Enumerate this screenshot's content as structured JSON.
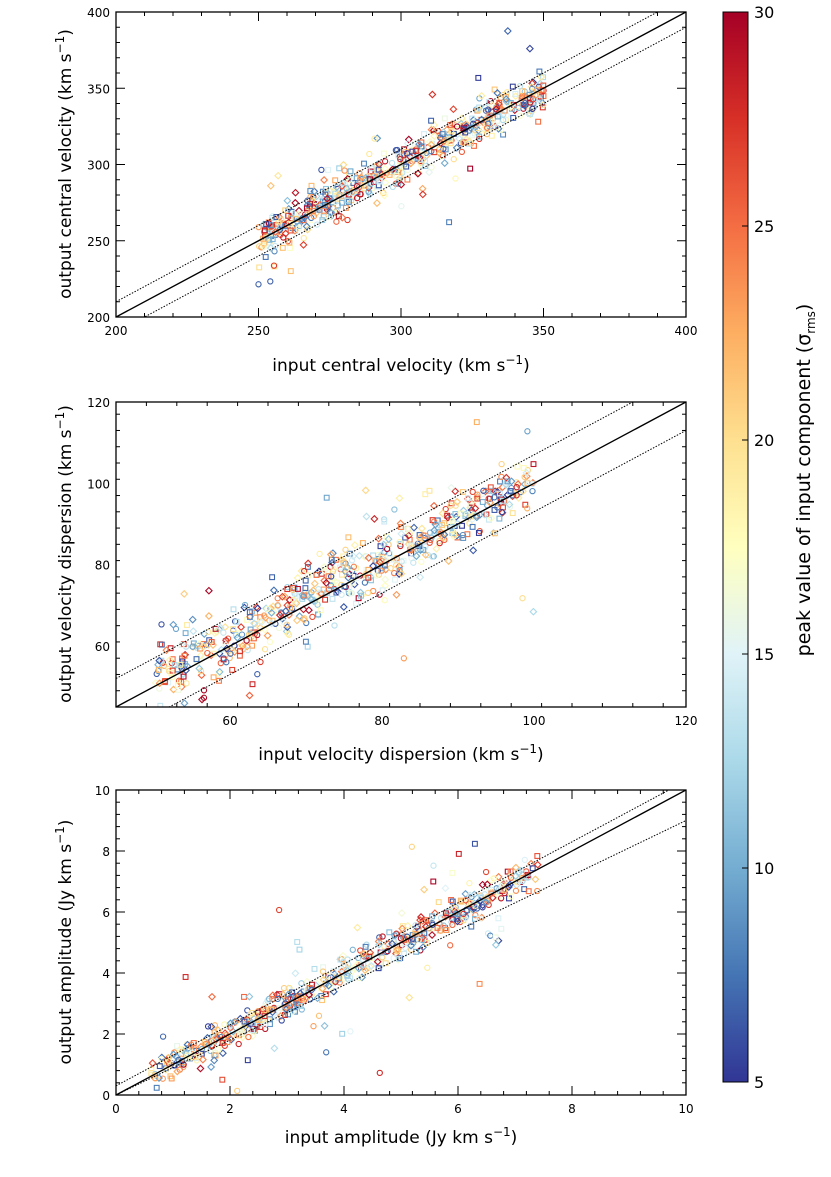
{
  "chart_data": [
    {
      "type": "scatter",
      "id": "p1",
      "xlabel": "input central velocity (km s",
      "ylabel": "output central velocity (km s",
      "unit_exp": "−1",
      "unit_close": ")",
      "xlim": [
        200,
        400
      ],
      "ylim": [
        200,
        400
      ],
      "xticks": [
        200,
        250,
        300,
        350,
        400
      ],
      "yticks": [
        200,
        250,
        300,
        350,
        400
      ],
      "reference_lines": {
        "slope": 1,
        "intercept": 0,
        "band_offset": 10
      },
      "input_range": [
        250,
        350
      ],
      "relation": {
        "slope": 1,
        "intercept": 0,
        "scatter": 6,
        "outlier_scatter": 18
      },
      "n_points": 650,
      "seed": 11
    },
    {
      "type": "scatter",
      "id": "p2",
      "xlabel": "input velocity dispersion (km s",
      "ylabel": "output velocity dispersion (km s",
      "unit_exp": "−1",
      "unit_close": ")",
      "xlim": [
        45,
        120
      ],
      "ylim": [
        45,
        120
      ],
      "xticks": [
        60,
        80,
        100,
        120
      ],
      "yticks": [
        60,
        80,
        100,
        120
      ],
      "reference_lines": {
        "slope": 1,
        "intercept": 0,
        "band_offset": 7
      },
      "input_range": [
        50,
        100
      ],
      "relation": {
        "slope": 1,
        "intercept": 1,
        "scatter": 3.2,
        "outlier_scatter": 12
      },
      "n_points": 650,
      "seed": 23
    },
    {
      "type": "scatter",
      "id": "p3",
      "xlabel": "input amplitude (Jy km s",
      "ylabel": "output amplitude (Jy km s",
      "unit_exp": "−1",
      "unit_close": ")",
      "xlim": [
        0,
        10
      ],
      "ylim": [
        0,
        10
      ],
      "xticks": [
        0,
        2,
        4,
        6,
        8,
        10
      ],
      "yticks": [
        0,
        2,
        4,
        6,
        8,
        10
      ],
      "reference_lines": {
        "slope": 1,
        "intercept": 0,
        "band_offset_frac": 0.1,
        "band_intercept": 0.3
      },
      "input_range": [
        0.6,
        7.4
      ],
      "relation": {
        "slope": 1,
        "intercept": 0,
        "scatter": 0.25,
        "outlier_scatter": 1.2
      },
      "n_points": 650,
      "seed": 37
    }
  ],
  "colorbar": {
    "label_main": "peak value of input component (σ",
    "label_sub": "rms",
    "label_close": ")",
    "range": [
      5,
      30
    ],
    "ticks": [
      5,
      10,
      15,
      20,
      25,
      30
    ],
    "colors": [
      "#313695",
      "#4575b4",
      "#74add1",
      "#abd9e9",
      "#e0f3f8",
      "#ffffbf",
      "#fee090",
      "#fdae61",
      "#f46d43",
      "#d73027",
      "#a50026"
    ]
  },
  "marker_types": [
    "circle",
    "square",
    "diamond"
  ]
}
